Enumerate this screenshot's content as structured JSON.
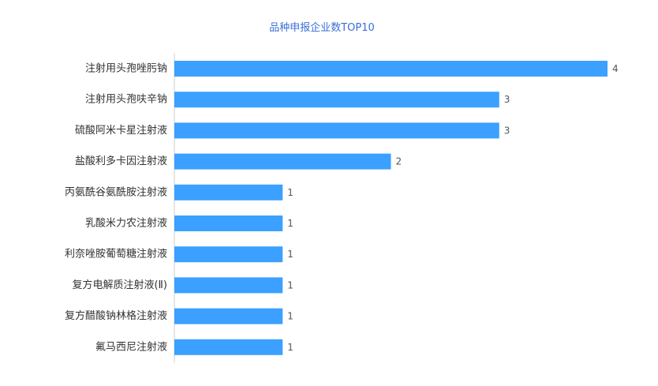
{
  "chart_data": {
    "type": "bar",
    "orientation": "horizontal",
    "title": "品种申报企业数TOP10",
    "categories": [
      "注射用头孢唑肟钠",
      "注射用头孢呋辛钠",
      "硫酸阿米卡星注射液",
      "盐酸利多卡因注射液",
      "丙氨酰谷氨酰胺注射液",
      "乳酸米力农注射液",
      "利奈唑胺葡萄糖注射液",
      "复方电解质注射液(Ⅱ)",
      "复方醋酸钠林格注射液",
      "氟马西尼注射液"
    ],
    "values": [
      4,
      3,
      3,
      2,
      1,
      1,
      1,
      1,
      1,
      1
    ],
    "xlim": [
      0,
      4
    ],
    "grid": false,
    "legend": "none",
    "colors": {
      "bar": "#3ba0ff",
      "title": "#3a6fd6",
      "label": "#333333",
      "value": "#555555",
      "axis": "#cccccc"
    }
  }
}
